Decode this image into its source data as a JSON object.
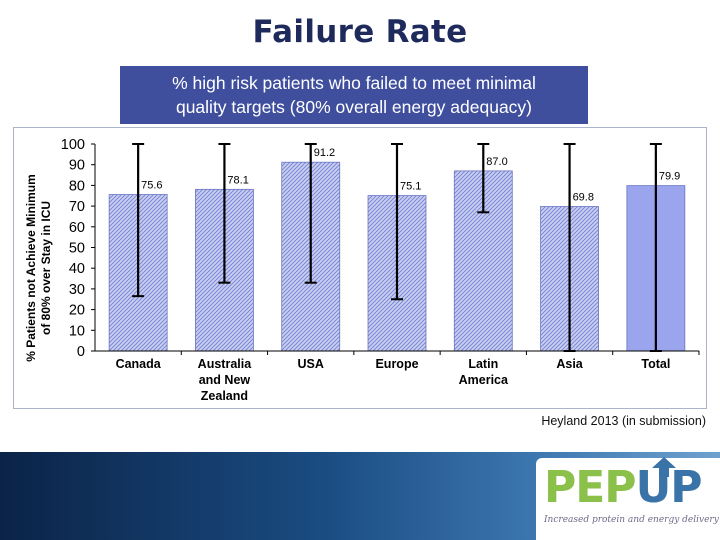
{
  "slide": {
    "title": "Failure Rate",
    "subtitle_line1": "% high risk patients who failed to meet minimal",
    "subtitle_line2": "quality targets (80% overall energy adequacy)",
    "source": "Heyland 2013 (in submission)",
    "colors": {
      "title": "#1f2a5c",
      "subtitle_bg": "#3f4f9e",
      "bar_fill": "#c9d0f0",
      "bar_hatch": "#7c86d6",
      "total_bar": "#9aa5ee"
    }
  },
  "chart_data": {
    "type": "bar",
    "title": "",
    "ylabel_line1": "% Patients not Achieve Minimum",
    "ylabel_line2": "of 80% over Stay in ICU",
    "ylim": [
      0,
      100
    ],
    "yticks": [
      0,
      10,
      20,
      30,
      40,
      50,
      60,
      70,
      80,
      90,
      100
    ],
    "categories": [
      [
        "Canada"
      ],
      [
        "Australia",
        "and New",
        "Zealand"
      ],
      [
        "USA"
      ],
      [
        "Europe"
      ],
      [
        "Latin",
        "America"
      ],
      [
        "Asia"
      ],
      [
        "Total"
      ]
    ],
    "values": [
      75.6,
      78.1,
      91.2,
      75.1,
      87.0,
      69.8,
      79.9
    ],
    "value_labels": [
      "75.6",
      "78.1",
      "91.2",
      "75.1",
      "87.0",
      "69.8",
      "79.9"
    ],
    "error_bars": [
      {
        "low": 26.5,
        "high": 100
      },
      {
        "low": 33,
        "high": 100
      },
      {
        "low": 33,
        "high": 100
      },
      {
        "low": 25,
        "high": 100
      },
      {
        "low": 67,
        "high": 100
      },
      {
        "low": 0,
        "high": 100
      },
      {
        "low": 0,
        "high": 100
      }
    ],
    "highlight_index": 6
  },
  "logo": {
    "text_part1": "PEP",
    "text_part2": "UP",
    "tagline": "Increased protein and energy delivery",
    "colors": {
      "part1": "#8bc04a",
      "part2": "#3a73a7"
    }
  }
}
